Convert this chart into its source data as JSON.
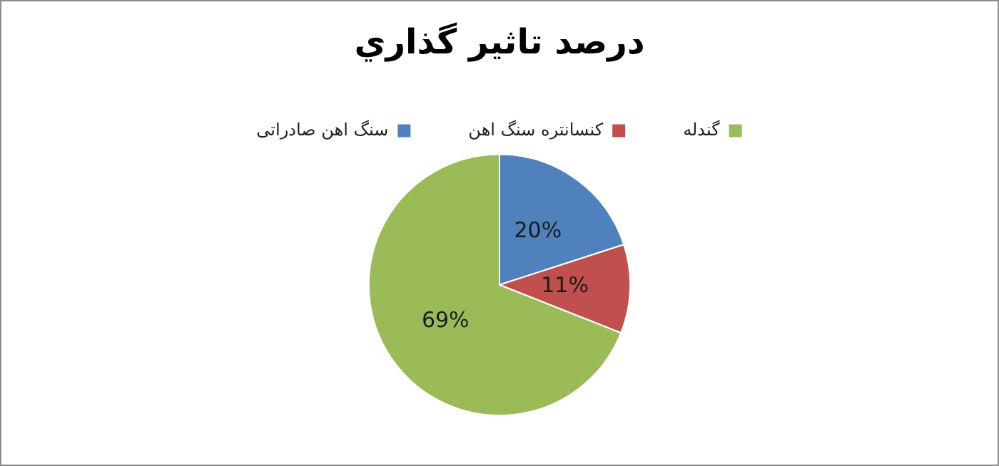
{
  "chart_data": {
    "type": "pie",
    "title": "درصد تاثير گذاري",
    "categories": [
      "سنگ اهن صادراتی",
      "کنسانتره سنگ اهن",
      "گندله"
    ],
    "values": [
      20,
      11,
      69
    ],
    "colors": [
      "#4f81bd",
      "#c0504d",
      "#9bbb59"
    ],
    "value_labels": [
      "20%",
      "11%",
      "69%"
    ],
    "legend": "top"
  }
}
